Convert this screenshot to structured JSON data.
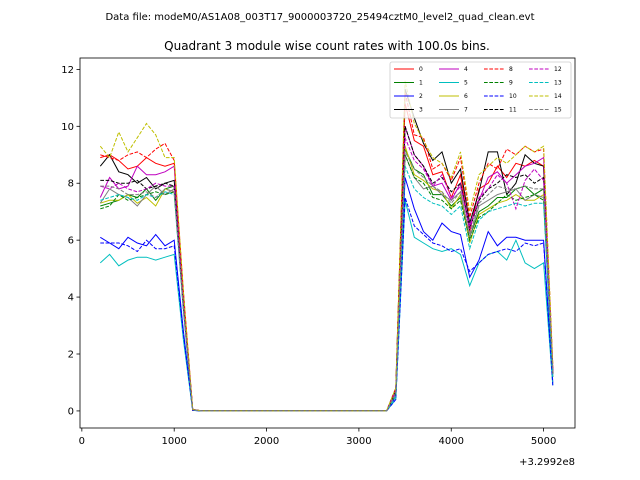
{
  "figure": {
    "suptitle": "Data file: modeM0/AS1A08_003T17_9000003720_25494cztM0_level2_quad_clean.evt",
    "title": "Quadrant 3 module wise count rates with 100.0s bins.",
    "x_offset_label": "+3.2992e8"
  },
  "chart_data": {
    "type": "line",
    "title": "Quadrant 3 module wise count rates with 100.0s bins.",
    "xlabel": "",
    "ylabel": "",
    "x_offset": "+3.2992e8",
    "xlim": [
      -20,
      5340
    ],
    "ylim": [
      -0.6,
      12.4
    ],
    "xticks": [
      0,
      1000,
      2000,
      3000,
      4000,
      5000
    ],
    "yticks": [
      0,
      2,
      4,
      6,
      8,
      10,
      12
    ],
    "grid": false,
    "legend_position": "top-right",
    "x": [
      200,
      300,
      400,
      500,
      600,
      700,
      800,
      900,
      1000,
      1100,
      1200,
      1300,
      1400,
      1500,
      1600,
      1700,
      1800,
      1900,
      2000,
      2100,
      2200,
      2300,
      2400,
      2500,
      2600,
      2700,
      2800,
      2900,
      3000,
      3100,
      3200,
      3300,
      3400,
      3500,
      3600,
      3700,
      3800,
      3900,
      4000,
      4100,
      4200,
      4300,
      4400,
      4500,
      4600,
      4700,
      4800,
      4900,
      5000,
      5100
    ],
    "series": [
      {
        "name": "0",
        "color": "#ff0000",
        "dash": "solid",
        "values": [
          8.9,
          9.0,
          8.8,
          8.5,
          8.6,
          8.9,
          8.7,
          8.6,
          8.7,
          4.0,
          0.05,
          0,
          0,
          0,
          0,
          0,
          0,
          0,
          0,
          0,
          0,
          0,
          0,
          0,
          0,
          0,
          0,
          0,
          0,
          0,
          0,
          0,
          0.7,
          10.8,
          9.5,
          9.3,
          8.3,
          8.4,
          7.5,
          8.3,
          6.3,
          7.8,
          8.0,
          8.6,
          8.2,
          8.7,
          8.6,
          8.8,
          8.6,
          1.5
        ]
      },
      {
        "name": "1",
        "color": "#008000",
        "dash": "solid",
        "values": [
          7.2,
          7.3,
          7.4,
          7.6,
          7.5,
          7.8,
          7.4,
          7.8,
          7.9,
          3.6,
          0.03,
          0,
          0,
          0,
          0,
          0,
          0,
          0,
          0,
          0,
          0,
          0,
          0,
          0,
          0,
          0,
          0,
          0,
          0,
          0,
          0,
          0,
          0.6,
          9.2,
          8.5,
          8.3,
          7.6,
          7.6,
          7.2,
          7.5,
          6.1,
          7.0,
          7.2,
          7.5,
          7.5,
          7.8,
          7.9,
          7.6,
          7.8,
          1.3
        ]
      },
      {
        "name": "2",
        "color": "#0000ff",
        "dash": "solid",
        "values": [
          6.1,
          5.9,
          5.7,
          6.1,
          5.9,
          5.8,
          6.2,
          5.8,
          6.0,
          2.8,
          0.02,
          0,
          0,
          0,
          0,
          0,
          0,
          0,
          0,
          0,
          0,
          0,
          0,
          0,
          0,
          0,
          0,
          0,
          0,
          0,
          0,
          0,
          0.5,
          8.2,
          7.1,
          6.3,
          6.0,
          6.6,
          6.3,
          6.2,
          4.7,
          5.3,
          6.3,
          5.8,
          6.1,
          6.1,
          6.0,
          6.0,
          6.0,
          1.0
        ]
      },
      {
        "name": "3",
        "color": "#000000",
        "dash": "solid",
        "values": [
          8.6,
          9.0,
          8.4,
          8.3,
          8.0,
          8.2,
          7.8,
          8.0,
          8.1,
          3.8,
          0.05,
          0,
          0,
          0,
          0,
          0,
          0,
          0,
          0,
          0,
          0,
          0,
          0,
          0,
          0,
          0,
          0,
          0,
          0,
          0,
          0,
          0,
          0.8,
          11.3,
          10.3,
          9.4,
          8.8,
          9.1,
          8.0,
          8.5,
          6.6,
          7.7,
          9.1,
          9.1,
          7.6,
          8.0,
          9.0,
          8.7,
          8.6,
          1.4
        ]
      },
      {
        "name": "4",
        "color": "#bf00bf",
        "dash": "solid",
        "values": [
          7.5,
          8.2,
          7.8,
          7.9,
          8.6,
          8.3,
          8.3,
          8.4,
          8.6,
          4.0,
          0.04,
          0,
          0,
          0,
          0,
          0,
          0,
          0,
          0,
          0,
          0,
          0,
          0,
          0,
          0,
          0,
          0,
          0,
          0,
          0,
          0,
          0,
          0.7,
          10.0,
          9.0,
          8.6,
          7.9,
          8.0,
          7.4,
          8.0,
          6.5,
          7.4,
          8.2,
          8.4,
          8.0,
          8.3,
          8.6,
          8.7,
          8.9,
          1.4
        ]
      },
      {
        "name": "5",
        "color": "#00bfbf",
        "dash": "solid",
        "values": [
          5.2,
          5.5,
          5.1,
          5.3,
          5.4,
          5.4,
          5.3,
          5.4,
          5.5,
          2.5,
          0.02,
          0,
          0,
          0,
          0,
          0,
          0,
          0,
          0,
          0,
          0,
          0,
          0,
          0,
          0,
          0,
          0,
          0,
          0,
          0,
          0,
          0,
          0.4,
          7.4,
          6.1,
          5.9,
          5.7,
          5.6,
          5.7,
          5.5,
          4.4,
          5.2,
          5.5,
          5.6,
          5.3,
          6.0,
          5.2,
          5.0,
          5.2,
          0.9
        ]
      },
      {
        "name": "6",
        "color": "#bfbf00",
        "dash": "solid",
        "values": [
          7.3,
          7.4,
          7.4,
          7.6,
          7.3,
          7.5,
          7.2,
          7.8,
          7.7,
          3.6,
          0.03,
          0,
          0,
          0,
          0,
          0,
          0,
          0,
          0,
          0,
          0,
          0,
          0,
          0,
          0,
          0,
          0,
          0,
          0,
          0,
          0,
          0,
          0.6,
          9.3,
          8.3,
          8.1,
          7.8,
          7.7,
          7.1,
          7.6,
          5.9,
          6.9,
          7.1,
          7.3,
          7.4,
          7.6,
          7.4,
          7.4,
          7.6,
          1.3
        ]
      },
      {
        "name": "7",
        "color": "#808080",
        "dash": "solid",
        "values": [
          7.3,
          7.8,
          7.6,
          7.5,
          7.2,
          7.6,
          7.9,
          7.6,
          7.8,
          3.6,
          0.03,
          0,
          0,
          0,
          0,
          0,
          0,
          0,
          0,
          0,
          0,
          0,
          0,
          0,
          0,
          0,
          0,
          0,
          0,
          0,
          0,
          0,
          0.6,
          9.0,
          8.2,
          7.8,
          7.9,
          7.6,
          7.4,
          7.7,
          6.1,
          7.2,
          7.4,
          7.6,
          7.7,
          7.8,
          7.4,
          7.6,
          7.5,
          1.2
        ]
      },
      {
        "name": "8",
        "color": "#ff0000",
        "dash": "dashed",
        "values": [
          9.0,
          8.9,
          8.8,
          9.0,
          9.1,
          8.9,
          9.2,
          9.4,
          8.8,
          4.2,
          0.05,
          0,
          0,
          0,
          0,
          0,
          0,
          0,
          0,
          0,
          0,
          0,
          0,
          0,
          0,
          0,
          0,
          0,
          0,
          0,
          0,
          0,
          0.8,
          11.2,
          9.7,
          9.6,
          8.5,
          8.7,
          8.1,
          8.9,
          6.8,
          8.0,
          8.7,
          8.5,
          9.2,
          9.0,
          9.3,
          9.1,
          9.2,
          1.6
        ]
      },
      {
        "name": "9",
        "color": "#008000",
        "dash": "dashed",
        "values": [
          7.1,
          7.2,
          7.6,
          7.4,
          7.5,
          7.6,
          7.7,
          7.6,
          7.7,
          3.6,
          0.03,
          0,
          0,
          0,
          0,
          0,
          0,
          0,
          0,
          0,
          0,
          0,
          0,
          0,
          0,
          0,
          0,
          0,
          0,
          0,
          0,
          0,
          0.6,
          9.0,
          8.2,
          8.0,
          7.5,
          7.4,
          7.1,
          7.4,
          6.0,
          6.8,
          7.0,
          7.3,
          7.6,
          7.4,
          7.5,
          7.6,
          7.4,
          1.2
        ]
      },
      {
        "name": "10",
        "color": "#0000ff",
        "dash": "dashed",
        "values": [
          5.9,
          5.9,
          5.9,
          5.8,
          5.6,
          6.0,
          5.7,
          5.7,
          5.8,
          2.7,
          0.02,
          0,
          0,
          0,
          0,
          0,
          0,
          0,
          0,
          0,
          0,
          0,
          0,
          0,
          0,
          0,
          0,
          0,
          0,
          0,
          0,
          0,
          0.4,
          7.5,
          6.5,
          6.2,
          5.9,
          5.8,
          5.6,
          5.7,
          4.9,
          5.2,
          5.5,
          5.6,
          5.7,
          5.6,
          5.9,
          5.8,
          5.9,
          0.9
        ]
      },
      {
        "name": "11",
        "color": "#000000",
        "dash": "dashed",
        "values": [
          8.1,
          8.1,
          8.0,
          8.0,
          8.1,
          7.8,
          7.9,
          8.0,
          7.9,
          3.7,
          0.04,
          0,
          0,
          0,
          0,
          0,
          0,
          0,
          0,
          0,
          0,
          0,
          0,
          0,
          0,
          0,
          0,
          0,
          0,
          0,
          0,
          0,
          0.7,
          10.0,
          9.0,
          8.6,
          8.0,
          8.2,
          7.7,
          8.0,
          6.4,
          7.4,
          7.8,
          8.0,
          8.3,
          8.2,
          8.3,
          8.0,
          8.2,
          1.3
        ]
      },
      {
        "name": "12",
        "color": "#bf00bf",
        "dash": "dashed",
        "values": [
          7.9,
          7.8,
          8.0,
          7.8,
          7.7,
          7.8,
          8.0,
          7.9,
          7.9,
          3.7,
          0.04,
          0,
          0,
          0,
          0,
          0,
          0,
          0,
          0,
          0,
          0,
          0,
          0,
          0,
          0,
          0,
          0,
          0,
          0,
          0,
          0,
          0,
          0.7,
          9.6,
          8.8,
          8.5,
          7.9,
          8.3,
          7.5,
          7.9,
          6.4,
          7.5,
          7.8,
          8.3,
          8.0,
          7.1,
          8.1,
          8.5,
          8.1,
          1.3
        ]
      },
      {
        "name": "13",
        "color": "#00bfbf",
        "dash": "dashed",
        "values": [
          7.4,
          7.5,
          7.6,
          7.5,
          7.4,
          7.6,
          7.5,
          7.7,
          7.6,
          3.5,
          0.03,
          0,
          0,
          0,
          0,
          0,
          0,
          0,
          0,
          0,
          0,
          0,
          0,
          0,
          0,
          0,
          0,
          0,
          0,
          0,
          0,
          0,
          0.5,
          8.6,
          7.8,
          7.5,
          7.3,
          7.2,
          6.9,
          7.2,
          5.7,
          6.7,
          7.0,
          7.1,
          7.2,
          7.3,
          7.2,
          7.3,
          7.3,
          1.2
        ]
      },
      {
        "name": "14",
        "color": "#bfbf00",
        "dash": "dashed",
        "values": [
          9.3,
          8.9,
          9.8,
          9.1,
          9.6,
          10.1,
          9.7,
          8.9,
          8.9,
          4.2,
          0.05,
          0,
          0,
          0,
          0,
          0,
          0,
          0,
          0,
          0,
          0,
          0,
          0,
          0,
          0,
          0,
          0,
          0,
          0,
          0,
          0,
          0,
          0.8,
          11.6,
          10.1,
          9.5,
          8.9,
          8.7,
          8.2,
          9.1,
          7.0,
          8.3,
          8.6,
          8.9,
          8.7,
          9.0,
          9.3,
          9.1,
          9.3,
          1.6
        ]
      },
      {
        "name": "15",
        "color": "#808080",
        "dash": "dashed",
        "values": [
          7.9,
          7.9,
          7.8,
          7.6,
          7.6,
          7.7,
          7.5,
          7.8,
          7.7,
          3.6,
          0.04,
          0,
          0,
          0,
          0,
          0,
          0,
          0,
          0,
          0,
          0,
          0,
          0,
          0,
          0,
          0,
          0,
          0,
          0,
          0,
          0,
          0,
          0.6,
          9.1,
          8.5,
          8.2,
          7.9,
          7.7,
          7.3,
          7.7,
          6.2,
          7.3,
          7.6,
          7.9,
          7.8,
          7.8,
          7.9,
          7.8,
          7.8,
          1.3
        ]
      }
    ]
  }
}
